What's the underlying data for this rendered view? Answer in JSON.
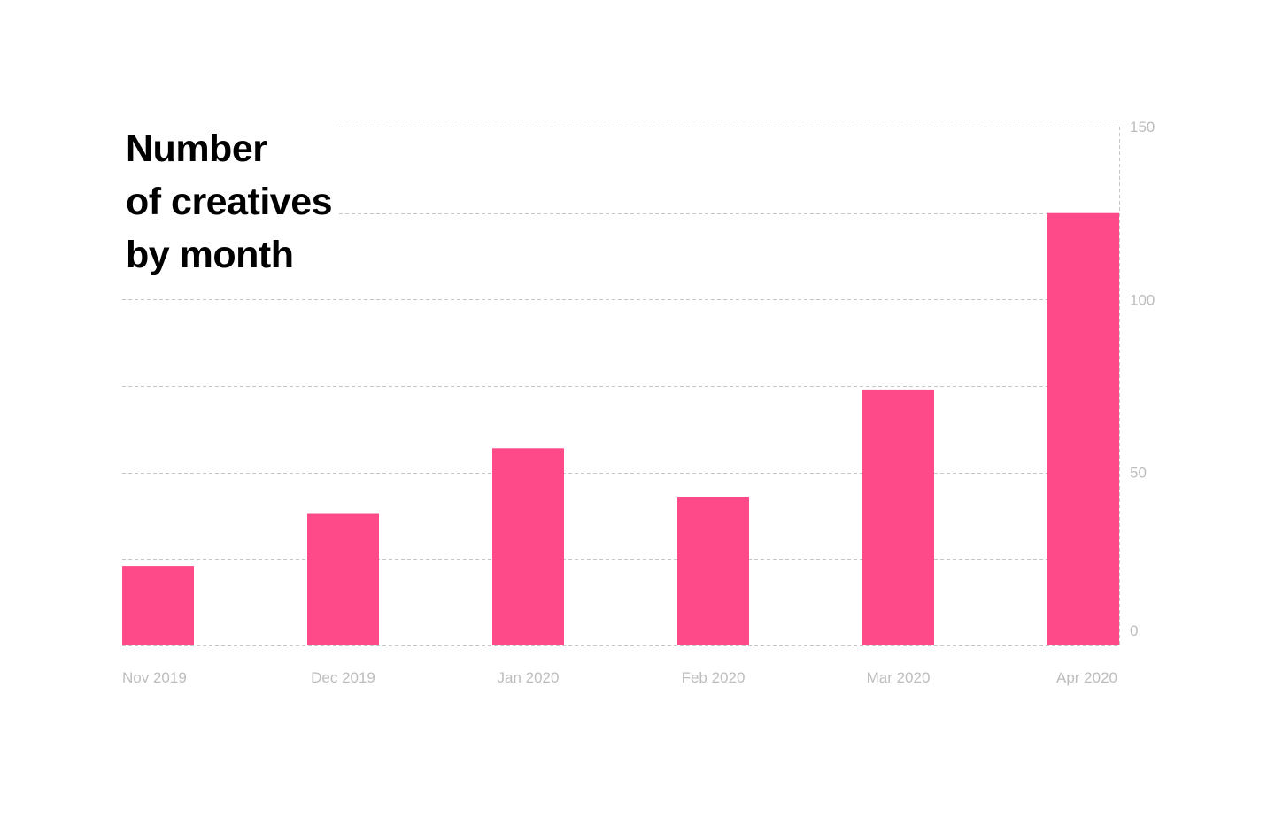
{
  "chart_data": {
    "type": "bar",
    "title_lines": [
      "Number",
      "of creatives",
      "by month"
    ],
    "xlabel": "",
    "ylabel": "",
    "categories": [
      "Nov 2019",
      "Dec 2019",
      "Jan 2020",
      "Feb 2020",
      "Mar 2020",
      "Apr 2020"
    ],
    "values": [
      23,
      38,
      57,
      43,
      74,
      125
    ],
    "ylim": [
      0,
      150
    ],
    "y_ticks": [
      0,
      50,
      100,
      150
    ],
    "y_axis_position": "right",
    "grid": true,
    "legend": "none",
    "bar_color": "#ff4a8a"
  }
}
